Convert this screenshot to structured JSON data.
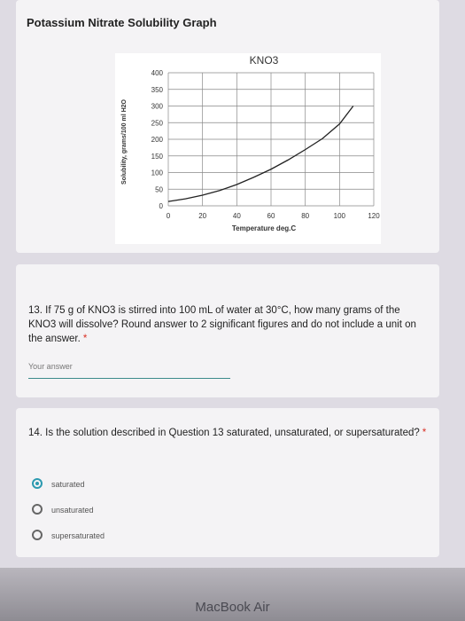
{
  "header": {
    "title": "Potassium Nitrate Solubility Graph"
  },
  "chart_data": {
    "type": "line",
    "title": "KNO3",
    "x_label": "Temperature  deg.C",
    "y_label": "Solubility, grams/100 ml H2O",
    "x": [
      0,
      10,
      20,
      30,
      40,
      50,
      60,
      70,
      80,
      90,
      100,
      108
    ],
    "values": [
      13,
      21,
      32,
      46,
      64,
      86,
      110,
      138,
      169,
      202,
      246,
      300
    ],
    "color": "#222222",
    "xlim": [
      0,
      120
    ],
    "xticks": [
      0,
      20,
      40,
      60,
      80,
      100,
      120
    ],
    "ylim": [
      0,
      400
    ],
    "yticks": [
      0,
      50,
      100,
      150,
      200,
      250,
      300,
      350,
      400
    ],
    "grid": true
  },
  "questions": [
    {
      "text": "13. If 75 g of KNO3 is stirred into 100 mL of water at 30°C, how many grams of the KNO3 will dissolve? Round answer to 2 significant figures and do not include a unit on the answer.",
      "required_mark": "*",
      "placeholder": "Your answer"
    },
    {
      "text": "14. Is the solution described in Question 13 saturated, unsaturated, or supersaturated?",
      "required_mark": "*",
      "options": [
        "saturated",
        "unsaturated",
        "supersaturated"
      ],
      "selected": 0
    }
  ],
  "footer": {
    "device": "MacBook Air"
  }
}
